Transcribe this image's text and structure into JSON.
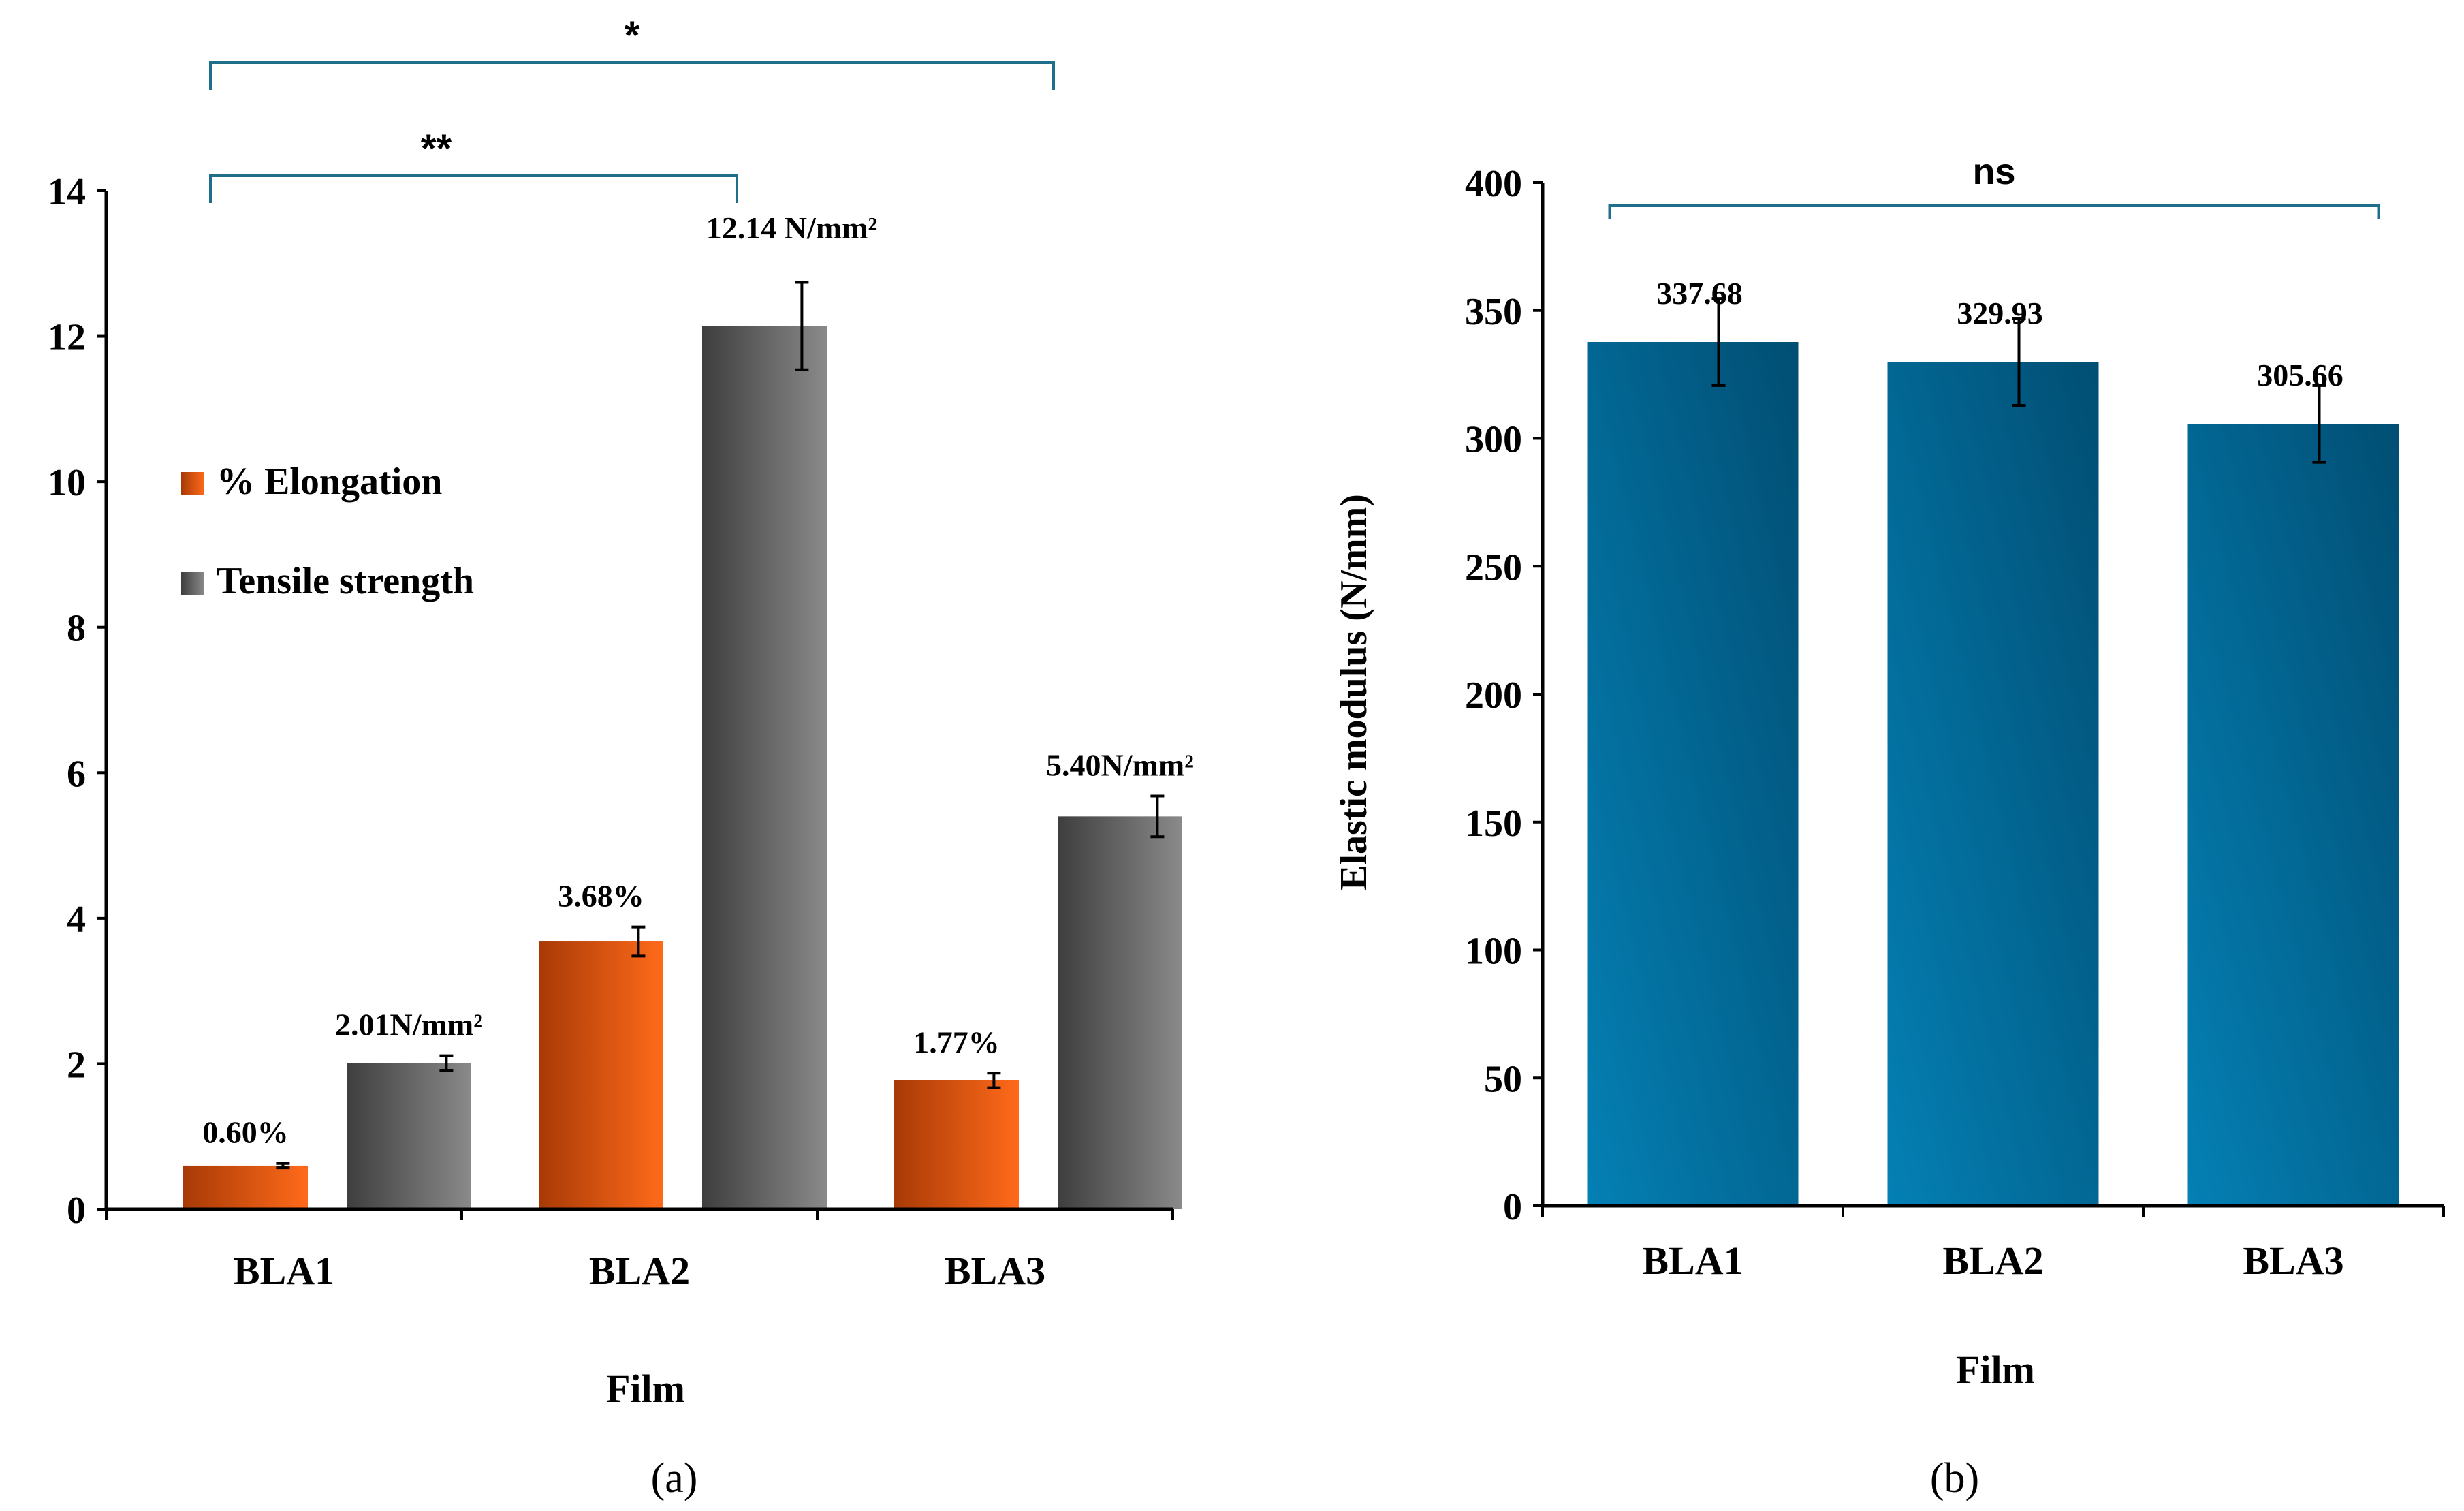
{
  "colors": {
    "elongation_dark": "#A83A06",
    "elongation_light": "#FF6A1A",
    "tensile_dark": "#3E3E3E",
    "tensile_light": "#8A8A8A",
    "modulus_light": "#0480B4",
    "modulus_dark": "#014E73",
    "bracket": "#1F6F8B",
    "axis": "#000000"
  },
  "chart_data": [
    {
      "type": "bar",
      "panel_label": "(a)",
      "categories": [
        "BLA1",
        "BLA2",
        "BLA3"
      ],
      "xlabel": "Film",
      "ylabel": "",
      "ylim": [
        0,
        14
      ],
      "yticks": [
        "0",
        "2",
        "4",
        "6",
        "8",
        "10",
        "12",
        "14"
      ],
      "legend_position": "middle-left",
      "series": [
        {
          "name": "% Elongation",
          "values": [
            0.6,
            3.68,
            1.77
          ],
          "errors": [
            0.03,
            0.2,
            0.1
          ],
          "labels": [
            "0.60%",
            "3.68%",
            "1.77%"
          ]
        },
        {
          "name": "Tensile strength",
          "values": [
            2.01,
            12.14,
            5.4
          ],
          "errors": [
            0.1,
            0.6,
            0.28
          ],
          "labels": [
            "2.01N/mm²",
            "12.14 N/mm²",
            "5.40N/mm²"
          ]
        }
      ],
      "significance": [
        {
          "label": "**",
          "from": "BLA1",
          "to": "BLA2"
        },
        {
          "label": "*",
          "from": "BLA1",
          "to": "BLA3"
        }
      ]
    },
    {
      "type": "bar",
      "panel_label": "(b)",
      "categories": [
        "BLA1",
        "BLA2",
        "BLA3"
      ],
      "xlabel": "Film",
      "ylabel": "Elastic modulus (N/mm)",
      "ylim": [
        0,
        400
      ],
      "yticks": [
        "0",
        "50",
        "100",
        "150",
        "200",
        "250",
        "300",
        "350",
        "400"
      ],
      "series": [
        {
          "name": "Elastic modulus",
          "values": [
            337.68,
            329.93,
            305.66
          ],
          "errors": [
            17,
            17,
            15
          ],
          "labels": [
            "337.68",
            "329.93",
            "305.66"
          ]
        }
      ],
      "significance": [
        {
          "label": "ns",
          "from": "BLA1",
          "to": "BLA3"
        }
      ]
    }
  ]
}
